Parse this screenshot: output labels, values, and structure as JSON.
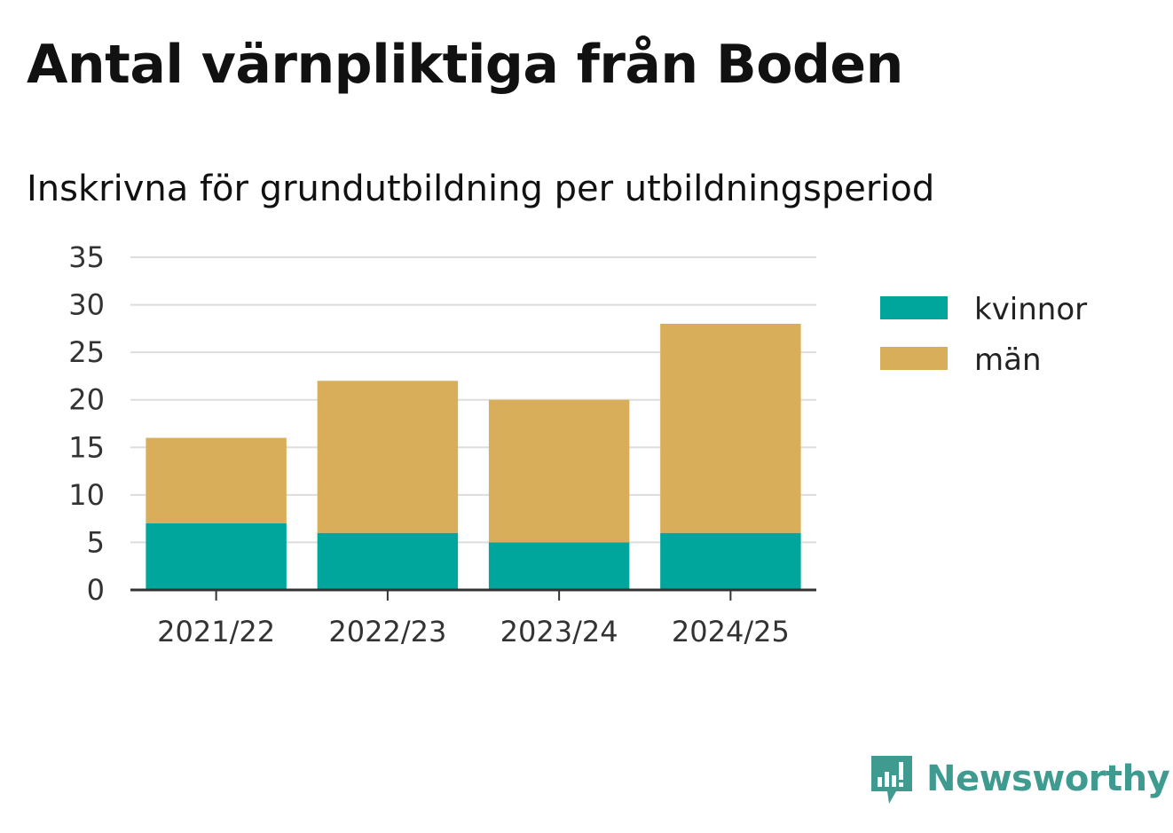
{
  "title": "Antal värnpliktiga från Boden",
  "subtitle": "Inskrivna för grundutbildning per utbildningsperiod",
  "brand": {
    "name": "Newsworthy",
    "icon": "newsworthy-logo-icon",
    "color": "#3f9a90"
  },
  "chart_data": {
    "type": "bar",
    "stacked": true,
    "title": "Antal värnpliktiga från Boden",
    "subtitle": "Inskrivna för grundutbildning per utbildningsperiod",
    "xlabel": "",
    "ylabel": "",
    "categories": [
      "2021/22",
      "2022/23",
      "2023/24",
      "2024/25"
    ],
    "series": [
      {
        "name": "kvinnor",
        "values": [
          7,
          6,
          5,
          6
        ],
        "color": "#00a69c"
      },
      {
        "name": "män",
        "values": [
          9,
          16,
          15,
          22
        ],
        "color": "#d9ae5b"
      }
    ],
    "ylim": [
      0,
      35
    ],
    "yticks": [
      "0",
      "5",
      "10",
      "15",
      "20",
      "25",
      "30",
      "35"
    ],
    "grid": true,
    "legend": "right"
  }
}
